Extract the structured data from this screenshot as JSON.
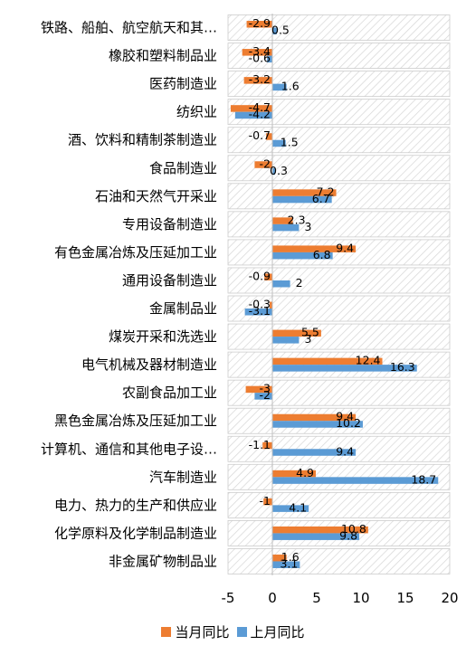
{
  "chart_data": {
    "type": "bar",
    "orientation": "horizontal",
    "categories": [
      "铁路、船舶、航空航天和其…",
      "橡胶和塑料制品业",
      "医药制造业",
      "纺织业",
      "酒、饮料和精制茶制造业",
      "食品制造业",
      "石油和天然气开采业",
      "专用设备制造业",
      "有色金属冶炼及压延加工业",
      "通用设备制造业",
      "金属制品业",
      "煤炭开采和洗选业",
      "电气机械及器材制造业",
      "农副食品加工业",
      "黑色金属冶炼及压延加工业",
      "计算机、通信和其他电子设…",
      "汽车制造业",
      "电力、热力的生产和供应业",
      "化学原料及化学制品制造业",
      "非金属矿物制品业"
    ],
    "series": [
      {
        "name": "当月同比",
        "color": "#ED7D31",
        "values": [
          -2.9,
          -3.4,
          -3.2,
          -4.7,
          -0.7,
          -2,
          7.2,
          2.3,
          9.4,
          -0.9,
          -0.3,
          5.5,
          12.4,
          -3,
          9.4,
          -1.1,
          4.9,
          -1,
          10.8,
          1.6
        ]
      },
      {
        "name": "上月同比",
        "color": "#5B9BD5",
        "values": [
          0.5,
          -0.6,
          1.6,
          -4.2,
          1.5,
          0.3,
          6.7,
          3,
          6.8,
          2,
          -3.1,
          3,
          16.3,
          -2,
          10.2,
          9.4,
          18.7,
          4.1,
          9.8,
          3.1
        ]
      }
    ],
    "value_labels": {
      "当月同比": [
        "-2.9",
        "-3.4",
        "-3.2",
        "-4.7",
        "-0.7",
        "-2",
        "7.2",
        "2.3",
        "9.4",
        "-0.9",
        "-0.3",
        "5.5",
        "12.4",
        "-3",
        "9.4",
        "-1.1",
        "4.9",
        "-1",
        "10.8",
        "1.6"
      ],
      "上月同比": [
        "0.5",
        "-0.6",
        "1.6",
        "-4.2",
        "1.5",
        "0.3",
        "6.7",
        "3",
        "6.8",
        "2",
        "-3.1",
        "3",
        "16.3",
        "-2",
        "10.2",
        "9.4",
        "18.7",
        "4.1",
        "9.8",
        "3.1"
      ]
    },
    "x_ticks": [
      "-5",
      "0",
      "5",
      "10",
      "15",
      "20"
    ],
    "xlim": [
      -5,
      20
    ],
    "legend_position": "bottom",
    "grid": false
  }
}
